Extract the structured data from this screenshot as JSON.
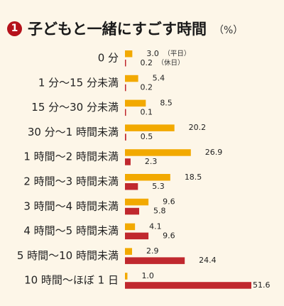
{
  "header": {
    "badge": "1",
    "title": "子どもと一緒にすごす時間",
    "unit": "（%）"
  },
  "colors": {
    "weekday": "#f2a900",
    "holiday": "#c0282e",
    "background": "#fdf6e8"
  },
  "chart_data": {
    "type": "bar",
    "orientation": "horizontal",
    "categories": [
      "0 分",
      "1 分〜15 分未満",
      "15 分〜30 分未満",
      "30 分〜1 時間未満",
      "1 時間〜2 時間未満",
      "2 時間〜3 時間未満",
      "3 時間〜4 時間未満",
      "4 時間〜5 時間未満",
      "5 時間〜10 時間未満",
      "10 時間〜ほぼ 1 日"
    ],
    "series": [
      {
        "name": "（平日）",
        "values": [
          3.0,
          5.4,
          8.5,
          20.2,
          26.9,
          18.5,
          9.6,
          4.1,
          2.9,
          1.0
        ]
      },
      {
        "name": "（休日）",
        "values": [
          0.2,
          0.2,
          0.1,
          0.5,
          2.3,
          5.3,
          5.8,
          9.6,
          24.4,
          51.6
        ]
      }
    ],
    "value_labels": [
      [
        "3.0",
        "5.4",
        "8.5",
        "20.2",
        "26.9",
        "18.5",
        "9.6",
        "4.1",
        "2.9",
        "1.0"
      ],
      [
        "0.2",
        "0.2",
        "0.1",
        "0.5",
        "2.3",
        "5.3",
        "5.8",
        "9.6",
        "24.4",
        "51.6"
      ]
    ],
    "title": "子どもと一緒にすごす時間",
    "unit": "（%）",
    "xlim": [
      0,
      51.6
    ],
    "grid": false,
    "legend": "inline beside first category bars"
  }
}
